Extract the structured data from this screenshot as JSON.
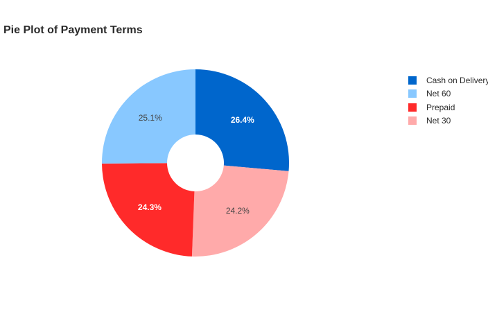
{
  "chart_data": {
    "type": "pie",
    "title": "Pie Plot of Payment Terms",
    "hole": true,
    "legend_position": "top-right",
    "slices": [
      {
        "label": "Cash on Delivery",
        "value": 26.4,
        "text": "26.4%",
        "color": "#0066cc",
        "text_color": "#ffffff"
      },
      {
        "label": "Net 30",
        "value": 24.2,
        "text": "24.2%",
        "color": "#ffaaaa",
        "text_color": "#444444"
      },
      {
        "label": "Prepaid",
        "value": 24.3,
        "text": "24.3%",
        "color": "#ff2a2a",
        "text_color": "#ffffff"
      },
      {
        "label": "Net 60",
        "value": 25.1,
        "text": "25.1%",
        "color": "#88c8ff",
        "text_color": "#444444"
      }
    ],
    "legend": [
      "Cash on Delivery",
      "Net 60",
      "Prepaid",
      "Net 30"
    ]
  }
}
